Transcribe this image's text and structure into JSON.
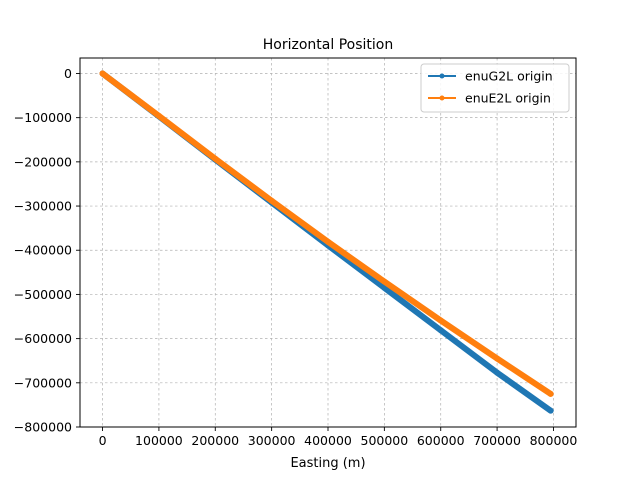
{
  "chart_data": {
    "type": "line",
    "title": "Horizontal Position",
    "xlabel": "Easting (m)",
    "ylabel": "",
    "xlim": [
      -40000,
      840000
    ],
    "ylim": [
      -800000,
      35000
    ],
    "xticks": [
      0,
      100000,
      200000,
      300000,
      400000,
      500000,
      600000,
      700000,
      800000
    ],
    "yticks": [
      0,
      -100000,
      -200000,
      -300000,
      -400000,
      -500000,
      -600000,
      -700000,
      -800000
    ],
    "xtick_labels": [
      "0",
      "100000",
      "200000",
      "300000",
      "400000",
      "500000",
      "600000",
      "700000",
      "800000"
    ],
    "ytick_labels": [
      "0",
      "−100000",
      "−200000",
      "−300000",
      "−400000",
      "−500000",
      "−600000",
      "−700000",
      "−800000"
    ],
    "grid": true,
    "legend_position": "top-right",
    "series": [
      {
        "name": "enuG2L origin",
        "color": "#1f77b4",
        "x": [
          0,
          100000,
          200000,
          300000,
          400000,
          500000,
          600000,
          700000,
          795000
        ],
        "y": [
          0,
          -97000,
          -195000,
          -292000,
          -389000,
          -485000,
          -581000,
          -677000,
          -763000
        ]
      },
      {
        "name": "enuE2L origin",
        "color": "#ff7f0e",
        "x": [
          0,
          100000,
          200000,
          300000,
          400000,
          500000,
          600000,
          700000,
          795000
        ],
        "y": [
          0,
          -96000,
          -193000,
          -288000,
          -381000,
          -471000,
          -559000,
          -645000,
          -725000
        ]
      }
    ]
  }
}
